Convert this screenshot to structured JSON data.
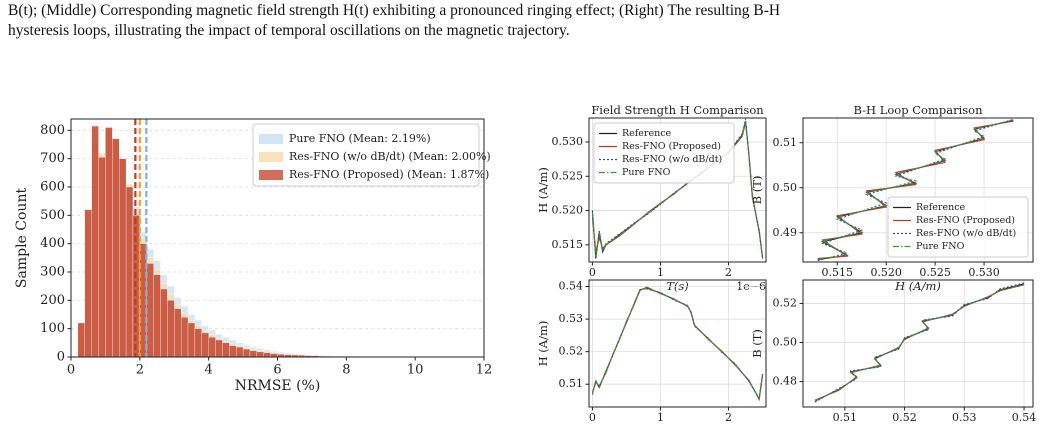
{
  "caption": [
    "B(t); (Middle) Corresponding magnetic field strength H(t) exhibiting a pronounced ringing effect; (Right) The resulting B-H",
    "hysteresis loops, illustrating the impact of temporal oscillations on the magnetic trajectory."
  ],
  "chart_data": [
    {
      "type": "histogram",
      "xlabel": "NRMSE (%)",
      "ylabel": "Sample Count",
      "xlim": [
        0,
        12
      ],
      "xticks": [
        0,
        2,
        4,
        6,
        8,
        10,
        12
      ],
      "ylim": [
        0,
        840
      ],
      "yticks": [
        0,
        100,
        200,
        300,
        400,
        500,
        600,
        700,
        800
      ],
      "grid": true,
      "legend": "upper right",
      "bins": [
        0,
        0.2,
        0.4,
        0.6,
        0.8,
        1,
        1.2,
        1.4,
        1.6,
        1.8,
        2,
        2.2,
        2.4,
        2.6,
        2.8,
        3,
        3.2,
        3.4,
        3.6,
        3.8,
        4,
        4.2,
        4.4,
        4.6,
        4.8,
        5,
        5.2,
        5.4,
        5.6,
        5.8,
        6,
        6.2,
        6.4,
        6.6,
        6.8,
        7,
        7.2,
        7.4,
        7.6,
        7.8,
        8,
        8.2,
        8.4,
        8.6,
        8.8,
        9,
        9.2,
        9.4,
        9.6,
        9.8,
        10,
        10.2,
        10.4,
        10.6,
        10.8,
        11,
        11.2,
        11.4,
        11.6,
        11.8,
        12
      ],
      "series": [
        {
          "name": "Pure FNO (Mean: 2.19%)",
          "color": "#c9e0f0",
          "mean_color": "#7fb3d5",
          "mean": 2.19,
          "values": [
            0,
            90,
            400,
            680,
            700,
            760,
            720,
            680,
            610,
            530,
            440,
            380,
            340,
            290,
            250,
            210,
            180,
            150,
            130,
            110,
            95,
            80,
            70,
            60,
            50,
            42,
            35,
            30,
            25,
            20,
            17,
            14,
            12,
            10,
            8,
            7,
            6,
            5,
            4,
            4,
            3,
            3,
            2,
            2,
            2,
            2,
            1,
            1,
            1,
            1,
            1,
            1,
            1,
            1,
            0,
            1,
            0,
            0,
            0,
            0
          ]
        },
        {
          "name": "Res-FNO (w/o dB/dt) (Mean: 2.00%)",
          "color": "#f9dcb0",
          "mean_color": "#f0a030",
          "mean": 2.0,
          "values": [
            0,
            100,
            470,
            760,
            720,
            800,
            760,
            700,
            610,
            510,
            420,
            350,
            310,
            260,
            220,
            185,
            155,
            130,
            110,
            92,
            78,
            66,
            55,
            46,
            39,
            32,
            26,
            22,
            18,
            15,
            12,
            10,
            9,
            8,
            6,
            5,
            4,
            4,
            3,
            3,
            2,
            2,
            1,
            1,
            1,
            1,
            1,
            1,
            1,
            1,
            0,
            1,
            0,
            0,
            1,
            0,
            0,
            0,
            0,
            0
          ]
        },
        {
          "name": "Res-FNO (Proposed) (Mean: 1.87%)",
          "color": "#c8553f",
          "mean_color": "#c0392b",
          "mean": 1.87,
          "values": [
            0,
            120,
            520,
            815,
            705,
            810,
            770,
            700,
            600,
            500,
            400,
            330,
            290,
            240,
            200,
            170,
            140,
            120,
            100,
            85,
            70,
            60,
            50,
            40,
            35,
            28,
            22,
            18,
            15,
            12,
            10,
            8,
            7,
            6,
            5,
            4,
            3,
            3,
            2,
            2,
            2,
            1,
            1,
            1,
            1,
            1,
            1,
            0,
            1,
            0,
            1,
            0,
            0,
            1,
            0,
            0,
            0,
            0,
            0,
            1
          ]
        }
      ]
    },
    {
      "type": "line",
      "title": "Field Strength H Comparison",
      "xlabel": "T(s)",
      "x_offset": "1e−6",
      "ylabel": "H (A/m)",
      "grid": true,
      "legend": "upper left",
      "xlim": [
        -0.05,
        2.55
      ],
      "xticks": [
        0,
        1,
        2
      ],
      "ylim": [
        0.5125,
        0.5335
      ],
      "yticks": [
        0.515,
        {
          "value": 0.52,
          "label": "0.520"
        },
        0.525,
        {
          "value": 0.53,
          "label": "0.530"
        }
      ],
      "x": [
        0,
        0.05,
        0.1,
        0.15,
        0.2,
        0.4,
        0.6,
        0.8,
        1.0,
        1.2,
        1.4,
        1.6,
        1.8,
        2.0,
        2.2,
        2.25,
        2.3,
        2.35,
        2.45,
        2.5
      ],
      "series": [
        {
          "name": "Reference",
          "color": "#222222",
          "linestyle": "solid",
          "values": [
            0.52,
            0.513,
            0.517,
            0.514,
            0.515,
            0.5165,
            0.518,
            0.5195,
            0.521,
            0.5225,
            0.524,
            0.5255,
            0.527,
            0.5285,
            0.531,
            0.533,
            0.528,
            0.522,
            0.517,
            0.513
          ]
        },
        {
          "name": "Res-FNO (Proposed)",
          "color": "#c0392b",
          "linestyle": "solid",
          "values": [
            0.519,
            0.514,
            0.516,
            0.5145,
            0.515,
            0.5163,
            0.5179,
            0.5196,
            0.5211,
            0.5224,
            0.5241,
            0.5254,
            0.5271,
            0.5284,
            0.5308,
            0.5328,
            0.5282,
            0.5222,
            0.5168,
            0.5132
          ]
        },
        {
          "name": "Res-FNO (w/o dB/dt)",
          "color": "#3a4cc0",
          "linestyle": "dotted",
          "values": [
            0.5195,
            0.5135,
            0.5168,
            0.5142,
            0.5152,
            0.5166,
            0.5181,
            0.5194,
            0.5209,
            0.5226,
            0.5239,
            0.5256,
            0.5269,
            0.5286,
            0.5312,
            0.5334,
            0.5278,
            0.5218,
            0.5172,
            0.5131
          ]
        },
        {
          "name": "Pure FNO",
          "color": "#2ca02c",
          "linestyle": "dashdot",
          "values": [
            0.5198,
            0.5132,
            0.5169,
            0.5141,
            0.5151,
            0.5164,
            0.518,
            0.5195,
            0.521,
            0.5225,
            0.524,
            0.5255,
            0.527,
            0.5285,
            0.5309,
            0.5331,
            0.5281,
            0.5221,
            0.517,
            0.5131
          ]
        }
      ]
    },
    {
      "type": "line",
      "ylabel": "H (A/m)",
      "grid": true,
      "xlim": [
        -0.05,
        2.55
      ],
      "xticks": [
        0,
        1,
        2
      ],
      "ylim": [
        0.503,
        0.542
      ],
      "yticks": [
        0.51,
        0.52,
        0.53,
        0.54
      ],
      "x": [
        0,
        0.05,
        0.1,
        0.2,
        0.3,
        0.4,
        0.5,
        0.6,
        0.7,
        0.8,
        1.0,
        1.2,
        1.4,
        1.45,
        1.5,
        1.7,
        1.9,
        2.1,
        2.3,
        2.45,
        2.5
      ],
      "series": [
        {
          "color": "#222222",
          "linestyle": "solid",
          "values": [
            0.507,
            0.511,
            0.509,
            0.514,
            0.519,
            0.524,
            0.529,
            0.534,
            0.539,
            0.5395,
            0.538,
            0.536,
            0.534,
            0.532,
            0.528,
            0.524,
            0.52,
            0.516,
            0.511,
            0.5055,
            0.513
          ]
        },
        {
          "color": "#c0392b",
          "linestyle": "solid",
          "values": [
            0.5075,
            0.5105,
            0.5095,
            0.5135,
            0.5192,
            0.5238,
            0.5293,
            0.5338,
            0.5388,
            0.5398,
            0.5378,
            0.5362,
            0.5338,
            0.5322,
            0.5282,
            0.5238,
            0.5202,
            0.5158,
            0.5112,
            0.5053,
            0.5128
          ]
        },
        {
          "color": "#3a4cc0",
          "linestyle": "dotted",
          "values": [
            0.5068,
            0.5112,
            0.5088,
            0.5142,
            0.5188,
            0.5242,
            0.5288,
            0.5342,
            0.5392,
            0.5392,
            0.5382,
            0.5358,
            0.5342,
            0.5318,
            0.5278,
            0.5242,
            0.5198,
            0.5162,
            0.5108,
            0.5057,
            0.5132
          ]
        },
        {
          "color": "#2ca02c",
          "linestyle": "dashdot",
          "values": [
            0.5071,
            0.5109,
            0.5091,
            0.5139,
            0.519,
            0.524,
            0.529,
            0.534,
            0.539,
            0.5394,
            0.538,
            0.536,
            0.534,
            0.532,
            0.528,
            0.524,
            0.52,
            0.516,
            0.511,
            0.5055,
            0.513
          ]
        }
      ]
    },
    {
      "type": "line",
      "title": "B-H Loop Comparison",
      "xlabel": "H (A/m)",
      "ylabel": "B (T)",
      "grid": true,
      "legend": "lower right",
      "xlim": [
        0.5115,
        0.535
      ],
      "xticks": [
        0.515,
        {
          "value": 0.52,
          "label": "0.520"
        },
        0.525,
        {
          "value": 0.53,
          "label": "0.530"
        }
      ],
      "ylim": [
        0.4835,
        0.5155
      ],
      "yticks": [
        0.49,
        {
          "value": 0.5,
          "label": "0.50"
        },
        0.51
      ],
      "x": [
        0.513,
        0.516,
        0.5135,
        0.5175,
        0.515,
        0.52,
        0.518,
        0.523,
        0.521,
        0.526,
        0.525,
        0.53,
        0.529,
        0.533
      ],
      "series": [
        {
          "name": "Reference",
          "color": "#222222",
          "linestyle": "solid",
          "values": [
            0.484,
            0.485,
            0.488,
            0.49,
            0.4935,
            0.496,
            0.499,
            0.501,
            0.503,
            0.506,
            0.508,
            0.511,
            0.513,
            0.515
          ]
        },
        {
          "name": "Res-FNO (Proposed)",
          "color": "#c0392b",
          "linestyle": "solid",
          "values": [
            0.4843,
            0.4848,
            0.4884,
            0.4897,
            0.4938,
            0.4957,
            0.4993,
            0.5007,
            0.5034,
            0.5056,
            0.5083,
            0.5107,
            0.5133,
            0.5148
          ]
        },
        {
          "name": "Res-FNO (w/o dB/dt)",
          "color": "#3a4cc0",
          "linestyle": "dotted",
          "values": [
            0.4838,
            0.4855,
            0.4876,
            0.4906,
            0.493,
            0.4966,
            0.4985,
            0.5015,
            0.5026,
            0.5064,
            0.5076,
            0.5114,
            0.5126,
            0.5152
          ]
        },
        {
          "name": "Pure FNO",
          "color": "#2ca02c",
          "linestyle": "dashdot",
          "values": [
            0.4841,
            0.4851,
            0.4881,
            0.4902,
            0.4934,
            0.4961,
            0.4989,
            0.5011,
            0.503,
            0.5061,
            0.508,
            0.5111,
            0.513,
            0.5151
          ]
        }
      ]
    },
    {
      "type": "line",
      "ylabel": "B (T)",
      "grid": true,
      "xlim": [
        0.503,
        0.5415
      ],
      "xticks": [
        0.51,
        0.52,
        0.53,
        0.54
      ],
      "ylim": [
        0.467,
        0.532
      ],
      "yticks": [
        0.48,
        {
          "value": 0.5,
          "label": "0.50"
        },
        0.52
      ],
      "x": [
        0.505,
        0.509,
        0.512,
        0.511,
        0.516,
        0.515,
        0.519,
        0.52,
        0.524,
        0.523,
        0.528,
        0.53,
        0.534,
        0.536,
        0.54
      ],
      "series": [
        {
          "color": "#222222",
          "linestyle": "solid",
          "values": [
            0.47,
            0.476,
            0.482,
            0.485,
            0.488,
            0.492,
            0.497,
            0.502,
            0.507,
            0.511,
            0.514,
            0.519,
            0.523,
            0.527,
            0.53
          ]
        },
        {
          "color": "#c0392b",
          "linestyle": "solid",
          "values": [
            0.4705,
            0.4755,
            0.4825,
            0.4845,
            0.4885,
            0.4915,
            0.4975,
            0.5015,
            0.5075,
            0.5105,
            0.5145,
            0.5185,
            0.5235,
            0.5265,
            0.5295
          ]
        },
        {
          "color": "#3a4cc0",
          "linestyle": "dotted",
          "values": [
            0.4695,
            0.4765,
            0.4815,
            0.4855,
            0.4875,
            0.4925,
            0.4965,
            0.5025,
            0.5065,
            0.5115,
            0.5135,
            0.5195,
            0.5225,
            0.5275,
            0.5305
          ]
        },
        {
          "color": "#2ca02c",
          "linestyle": "dashdot",
          "values": [
            0.4702,
            0.4758,
            0.4822,
            0.4848,
            0.4882,
            0.4918,
            0.4972,
            0.5018,
            0.5072,
            0.5108,
            0.5142,
            0.5188,
            0.5232,
            0.5268,
            0.5298
          ]
        }
      ]
    }
  ]
}
